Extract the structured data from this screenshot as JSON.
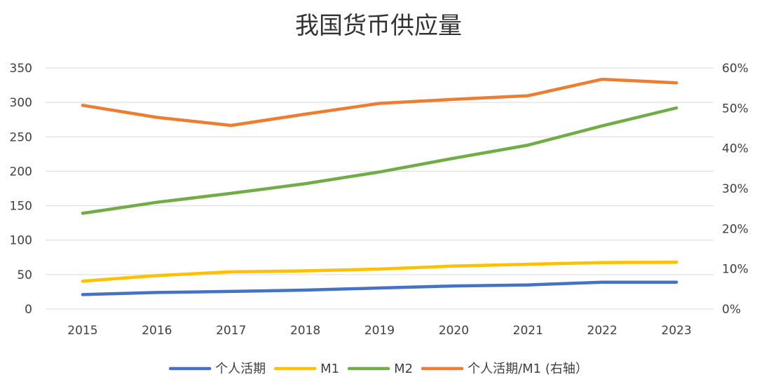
{
  "chart_data": {
    "type": "line",
    "title": "我国货币供应量",
    "categories": [
      "2015",
      "2016",
      "2017",
      "2018",
      "2019",
      "2020",
      "2021",
      "2022",
      "2023"
    ],
    "left_axis": {
      "ylim": [
        0,
        350
      ],
      "ticks": [
        0,
        50,
        100,
        150,
        200,
        250,
        300,
        350
      ],
      "tick_labels": [
        "0",
        "50",
        "100",
        "150",
        "200",
        "250",
        "300",
        "350"
      ]
    },
    "right_axis": {
      "ylim": [
        0,
        0.6
      ],
      "ticks": [
        0,
        0.1,
        0.2,
        0.3,
        0.4,
        0.5,
        0.6
      ],
      "tick_labels": [
        "0%",
        "10%",
        "20%",
        "30%",
        "40%",
        "50%",
        "60%"
      ]
    },
    "grid": true,
    "legend_position": "bottom",
    "series": [
      {
        "name": "个人活期",
        "axis": "left",
        "color": "#4472C4",
        "values": [
          21,
          24,
          25.5,
          27.5,
          30.5,
          33.5,
          35,
          39,
          39
        ]
      },
      {
        "name": "M1",
        "axis": "left",
        "color": "#FFC000",
        "values": [
          40.5,
          48.5,
          54,
          55.5,
          58,
          62.5,
          65,
          67.5,
          68
        ]
      },
      {
        "name": "M2",
        "axis": "left",
        "color": "#70AD47",
        "values": [
          139,
          155,
          168,
          182,
          199,
          219,
          238,
          266,
          292
        ]
      },
      {
        "name": "个人活期/M1 (右轴）",
        "axis": "right",
        "color": "#ED7D31",
        "values": [
          0.507,
          0.477,
          0.457,
          0.485,
          0.512,
          0.522,
          0.531,
          0.572,
          0.563
        ]
      }
    ]
  }
}
